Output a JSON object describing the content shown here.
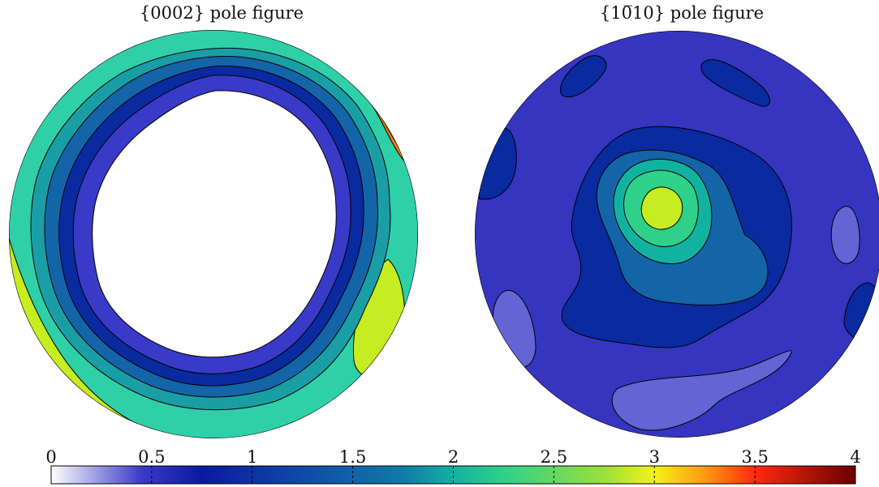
{
  "chart_data": [
    {
      "type": "heatmap",
      "title": "{0002} pole figure",
      "contour_levels": [
        0.5,
        1,
        1.5,
        2,
        2.5,
        3,
        3.5
      ],
      "value_range": [
        0,
        3.5
      ],
      "description_of_regions": [
        {
          "region": "center",
          "value": "0-0.5"
        },
        {
          "region": "inner ring",
          "value": "0.5-1"
        },
        {
          "region": "outer ring",
          "value": "1-2.5"
        },
        {
          "region": "rim maxima (upper-right, lower-left, right)",
          "value": "3-3.5"
        }
      ]
    },
    {
      "type": "heatmap",
      "title": "{10̅10} pole figure",
      "contour_levels": [
        0.5,
        1,
        1.5,
        2,
        2.5,
        3
      ],
      "value_range": [
        0,
        3
      ],
      "description_of_regions": [
        {
          "region": "background",
          "value": "0.5-1"
        },
        {
          "region": "central peak",
          "value": "3"
        },
        {
          "region": "low patches",
          "value": "0-0.5"
        }
      ]
    }
  ],
  "colorbar": {
    "min": 0,
    "max": 4,
    "ticks": [
      "0",
      "0.5",
      "1",
      "1.5",
      "2",
      "2.5",
      "3",
      "3.5",
      "4"
    ],
    "tick_values": [
      0,
      0.5,
      1,
      1.5,
      2,
      2.5,
      3,
      3.5,
      4
    ],
    "colormap": [
      {
        "v": 0,
        "c": "#ffffff"
      },
      {
        "v": 0.45,
        "c": "#3a3ac8"
      },
      {
        "v": 0.75,
        "c": "#0a1aa0"
      },
      {
        "v": 1.25,
        "c": "#0f4aa8"
      },
      {
        "v": 1.75,
        "c": "#117aa6"
      },
      {
        "v": 2.0,
        "c": "#12b2a0"
      },
      {
        "v": 2.25,
        "c": "#2ed08a"
      },
      {
        "v": 2.75,
        "c": "#9ae03a"
      },
      {
        "v": 3.0,
        "c": "#f2f21a"
      },
      {
        "v": 3.25,
        "c": "#ff9a10"
      },
      {
        "v": 3.5,
        "c": "#ff2a10"
      },
      {
        "v": 4.0,
        "c": "#6a0000"
      }
    ]
  }
}
